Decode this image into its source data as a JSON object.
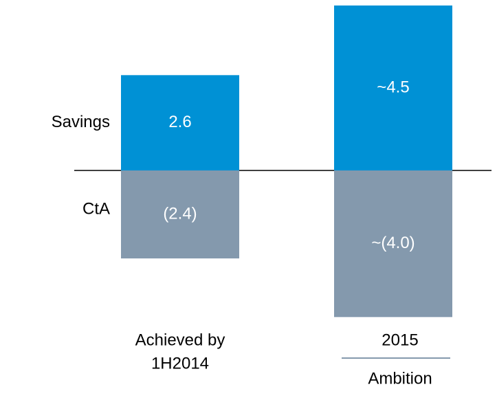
{
  "chart_data": {
    "type": "bar",
    "categories": [
      [
        "Achieved by",
        "1H2014"
      ],
      [
        "2015",
        "Ambition"
      ]
    ],
    "series": [
      {
        "name": "Savings",
        "color": "#0091d5",
        "values": [
          2.6,
          4.5
        ],
        "value_labels": [
          "2.6",
          "~4.5"
        ]
      },
      {
        "name": "CtA",
        "color": "#8499ad",
        "values": [
          -2.4,
          -4.0
        ],
        "value_labels": [
          "(2.4)",
          "~(4.0)"
        ]
      }
    ]
  }
}
